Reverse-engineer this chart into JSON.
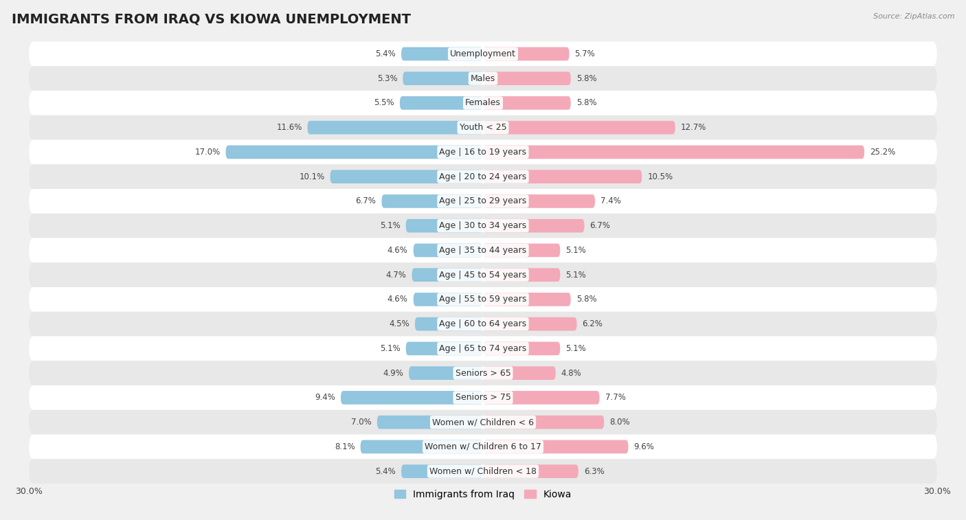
{
  "title": "IMMIGRANTS FROM IRAQ VS KIOWA UNEMPLOYMENT",
  "source": "Source: ZipAtlas.com",
  "categories": [
    "Unemployment",
    "Males",
    "Females",
    "Youth < 25",
    "Age | 16 to 19 years",
    "Age | 20 to 24 years",
    "Age | 25 to 29 years",
    "Age | 30 to 34 years",
    "Age | 35 to 44 years",
    "Age | 45 to 54 years",
    "Age | 55 to 59 years",
    "Age | 60 to 64 years",
    "Age | 65 to 74 years",
    "Seniors > 65",
    "Seniors > 75",
    "Women w/ Children < 6",
    "Women w/ Children 6 to 17",
    "Women w/ Children < 18"
  ],
  "iraq_values": [
    5.4,
    5.3,
    5.5,
    11.6,
    17.0,
    10.1,
    6.7,
    5.1,
    4.6,
    4.7,
    4.6,
    4.5,
    5.1,
    4.9,
    9.4,
    7.0,
    8.1,
    5.4
  ],
  "kiowa_values": [
    5.7,
    5.8,
    5.8,
    12.7,
    25.2,
    10.5,
    7.4,
    6.7,
    5.1,
    5.1,
    5.8,
    6.2,
    5.1,
    4.8,
    7.7,
    8.0,
    9.6,
    6.3
  ],
  "iraq_color": "#92c5de",
  "kiowa_color": "#f4a9b8",
  "row_color_light": "#ffffff",
  "row_color_dark": "#e8e8e8",
  "max_value": 30.0,
  "title_fontsize": 14,
  "label_fontsize": 9,
  "value_fontsize": 8.5,
  "legend_label_iraq": "Immigrants from Iraq",
  "legend_label_kiowa": "Kiowa",
  "fig_bg": "#f0f0f0"
}
